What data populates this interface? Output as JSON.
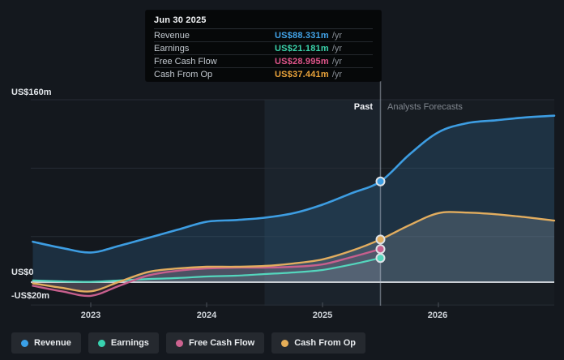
{
  "tooltip": {
    "date": "Jun 30 2025",
    "rows": [
      {
        "label": "Revenue",
        "value": "US$88.331m",
        "suffix": "/yr",
        "color": "#42a3e8"
      },
      {
        "label": "Earnings",
        "value": "US$21.181m",
        "suffix": "/yr",
        "color": "#3bd3ab"
      },
      {
        "label": "Free Cash Flow",
        "value": "US$28.995m",
        "suffix": "/yr",
        "color": "#e0558b"
      },
      {
        "label": "Cash From Op",
        "value": "US$37.441m",
        "suffix": "/yr",
        "color": "#eba43b"
      }
    ]
  },
  "axes": {
    "y_labels": [
      {
        "text": "US$160m",
        "value": 160
      },
      {
        "text": "US$0",
        "value": 0
      },
      {
        "text": "-US$20m",
        "value": -20
      }
    ],
    "x_labels": [
      {
        "text": "2023",
        "year": 2023
      },
      {
        "text": "2024",
        "year": 2024
      },
      {
        "text": "2025",
        "year": 2025
      },
      {
        "text": "2026",
        "year": 2026
      }
    ]
  },
  "annotations": {
    "past_label": "Past",
    "forecast_label": "Analysts Forecasts"
  },
  "legend": {
    "items": [
      {
        "label": "Revenue",
        "color": "#3aa0e8"
      },
      {
        "label": "Earnings",
        "color": "#38d2b0"
      },
      {
        "label": "Free Cash Flow",
        "color": "#cd6390"
      },
      {
        "label": "Cash From Op",
        "color": "#e5ae58"
      }
    ]
  },
  "chart_data": {
    "type": "line",
    "title": "Earnings and Revenue Growth with Analysts Forecasts",
    "x_unit": "year",
    "xlim": [
      2022.5,
      2027
    ],
    "ylim": [
      -20,
      160
    ],
    "grid": true,
    "gridline_values": [
      160,
      100,
      40,
      -20
    ],
    "zero_line_value": 0,
    "divider_x": 2025.5,
    "divider_date": "Jun 30 2025",
    "highlight_band": [
      2024.5,
      2025.5
    ],
    "legend_position": "bottom-left",
    "series": [
      {
        "name": "Revenue",
        "color": "#3d9de2",
        "fill": "rgba(62,140,200,0.20)",
        "width": 2.6,
        "marker_value": 88.331,
        "points": [
          [
            2022.5,
            35.5
          ],
          [
            2022.75,
            30
          ],
          [
            2023,
            26
          ],
          [
            2023.25,
            32
          ],
          [
            2023.5,
            39
          ],
          [
            2023.75,
            46
          ],
          [
            2024,
            53
          ],
          [
            2024.25,
            54.5
          ],
          [
            2024.5,
            56.5
          ],
          [
            2024.75,
            60.5
          ],
          [
            2025,
            68
          ],
          [
            2025.25,
            78
          ],
          [
            2025.5,
            88.331
          ],
          [
            2025.75,
            112
          ],
          [
            2026,
            131.5
          ],
          [
            2026.25,
            139.5
          ],
          [
            2026.5,
            142
          ],
          [
            2026.75,
            144.5
          ],
          [
            2027,
            146
          ]
        ]
      },
      {
        "name": "Earnings",
        "color": "#54d6bd",
        "fill": "rgba(95,212,192,0.10)",
        "width": 2.2,
        "marker_value": 21.181,
        "points": [
          [
            2022.5,
            1.5
          ],
          [
            2022.75,
            0.7
          ],
          [
            2023,
            0.3
          ],
          [
            2023.25,
            1.5
          ],
          [
            2023.5,
            2.8
          ],
          [
            2023.75,
            3.6
          ],
          [
            2024,
            5
          ],
          [
            2024.25,
            5.7
          ],
          [
            2024.5,
            7.1
          ],
          [
            2024.75,
            8.5
          ],
          [
            2025,
            10.7
          ],
          [
            2025.25,
            15.5
          ],
          [
            2025.5,
            21.181
          ]
        ]
      },
      {
        "name": "Free Cash Flow",
        "color": "#c75f8d",
        "fill": "rgba(205,102,144,0.12)",
        "width": 2.4,
        "marker_value": 28.995,
        "points": [
          [
            2022.5,
            -3.2
          ],
          [
            2022.75,
            -8
          ],
          [
            2023,
            -12
          ],
          [
            2023.25,
            -3
          ],
          [
            2023.5,
            6
          ],
          [
            2023.75,
            10
          ],
          [
            2024,
            12
          ],
          [
            2024.25,
            12.8
          ],
          [
            2024.5,
            12.8
          ],
          [
            2024.75,
            13.5
          ],
          [
            2025,
            15.6
          ],
          [
            2025.25,
            22
          ],
          [
            2025.5,
            28.995
          ]
        ]
      },
      {
        "name": "Cash From Op",
        "color": "#e2ad5f",
        "fill": "rgba(173,181,189,0.22)",
        "width": 2.4,
        "marker_value": 37.441,
        "points": [
          [
            2022.5,
            -1
          ],
          [
            2022.75,
            -5
          ],
          [
            2023,
            -8
          ],
          [
            2023.25,
            0.5
          ],
          [
            2023.5,
            9
          ],
          [
            2023.75,
            12
          ],
          [
            2024,
            13.5
          ],
          [
            2024.25,
            13.5
          ],
          [
            2024.5,
            14.2
          ],
          [
            2024.75,
            16.4
          ],
          [
            2025,
            20
          ],
          [
            2025.25,
            27.5
          ],
          [
            2025.5,
            37.441
          ],
          [
            2025.75,
            50
          ],
          [
            2026,
            60.5
          ],
          [
            2026.25,
            61
          ],
          [
            2026.5,
            59.5
          ],
          [
            2026.75,
            57
          ],
          [
            2027,
            54
          ]
        ]
      }
    ]
  }
}
